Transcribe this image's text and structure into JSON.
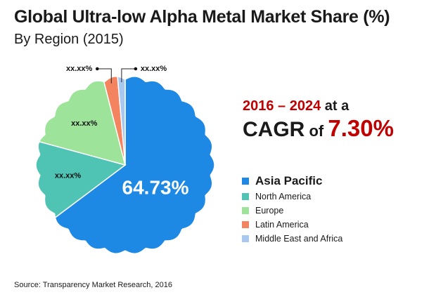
{
  "title": "Global Ultra-low Alpha Metal Market Share (%)",
  "subtitle": "By Region (2015)",
  "cagr": {
    "years": "2016 – 2024",
    "at_a": " at a",
    "cagr_word": "CAGR",
    "of_word": " of ",
    "value": "7.30%"
  },
  "source": "Source: Transparency Market Research, 2016",
  "colors": {
    "accent_red": "#c00000"
  },
  "chart_data": {
    "type": "pie",
    "title": "Global Ultra-low Alpha Metal Market Share (%)",
    "subtitle": "By Region (2015)",
    "legend_position": "right",
    "slices": [
      {
        "name": "Asia Pacific",
        "value": 64.73,
        "label": "64.73%",
        "color": "#1e88e5"
      },
      {
        "name": "North America",
        "value": 14.5,
        "label": "xx.xx%",
        "color": "#4fc3b4"
      },
      {
        "name": "Europe",
        "value": 16.8,
        "label": "xx.xx%",
        "color": "#9ee39a"
      },
      {
        "name": "Latin America",
        "value": 2.6,
        "label": "xx.xx%",
        "color": "#f4845f"
      },
      {
        "name": "Middle East and Africa",
        "value": 1.37,
        "label": "xx.xx%",
        "color": "#a9c8f0"
      }
    ]
  }
}
